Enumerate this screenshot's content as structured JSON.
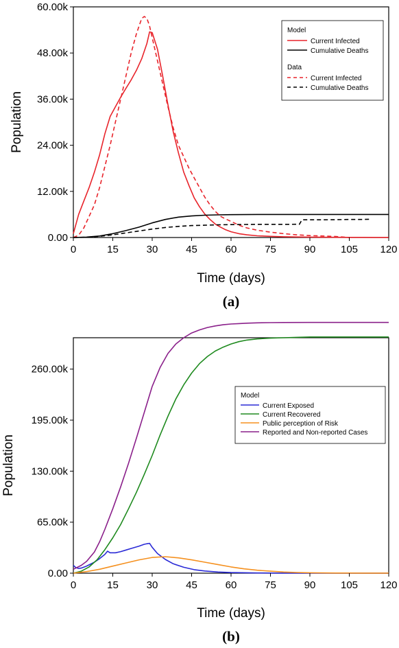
{
  "chart_data": [
    {
      "type": "line",
      "panel_label": "(a)",
      "xlabel": "Time (days)",
      "ylabel": "Population",
      "xlim": [
        0,
        120
      ],
      "ylim": [
        0,
        60000
      ],
      "xticks": [
        "0",
        "15",
        "30",
        "45",
        "60",
        "75",
        "90",
        "105",
        "120"
      ],
      "yticks": [
        "0.00",
        "12.00k",
        "24.00k",
        "36.00k",
        "48.00k",
        "60.00k"
      ],
      "legend_position": "top-right",
      "legend": [
        {
          "heading": "Model",
          "entries": [
            "Current Infected",
            "Cumulative Deaths"
          ]
        },
        {
          "heading": "Data",
          "entries": [
            "Current Imfected",
            "Cumulative Deaths"
          ]
        }
      ],
      "series": [
        {
          "name": "Current Infected",
          "group": "Model",
          "color": "#e8232a",
          "dash": "solid",
          "x": [
            0,
            2,
            4,
            6,
            8,
            10,
            12,
            14,
            16,
            18,
            20,
            22,
            24,
            26,
            28,
            29,
            30,
            32,
            34,
            36,
            38,
            40,
            42,
            44,
            46,
            48,
            50,
            52,
            54,
            56,
            58,
            60,
            63,
            66,
            70,
            75,
            80,
            85,
            90,
            95,
            100,
            105,
            110,
            115,
            120
          ],
          "y": [
            1000,
            6000,
            9500,
            13000,
            17000,
            21500,
            27000,
            31500,
            34000,
            36500,
            38800,
            41000,
            43500,
            46500,
            50500,
            53500,
            53300,
            49000,
            42000,
            34500,
            27500,
            22000,
            17000,
            13500,
            10300,
            8000,
            6100,
            4700,
            3500,
            2700,
            2000,
            1500,
            1000,
            700,
            450,
            300,
            200,
            150,
            100,
            80,
            60,
            40,
            30,
            20,
            15
          ]
        },
        {
          "name": "Cumulative Deaths",
          "group": "Model",
          "color": "#000000",
          "dash": "solid",
          "x": [
            0,
            5,
            10,
            15,
            20,
            25,
            30,
            35,
            40,
            45,
            50,
            55,
            60,
            70,
            80,
            90,
            100,
            110,
            120
          ],
          "y": [
            0,
            100,
            400,
            1000,
            1800,
            2700,
            3800,
            4700,
            5300,
            5600,
            5800,
            5900,
            5950,
            6000,
            6000,
            6000,
            6000,
            6000,
            6000
          ]
        },
        {
          "name": "Current Imfected",
          "group": "Data",
          "color": "#e8232a",
          "dash": "dashed",
          "x": [
            0,
            2,
            4,
            6,
            8,
            10,
            12,
            14,
            16,
            18,
            20,
            22,
            24,
            26,
            27,
            28,
            29,
            30,
            32,
            34,
            36,
            38,
            40,
            42,
            44,
            46,
            48,
            50,
            52,
            54,
            56,
            58,
            60,
            63,
            66,
            70,
            75,
            80,
            85,
            90,
            95,
            100,
            105
          ],
          "y": [
            0,
            600,
            2500,
            5500,
            8500,
            13000,
            18500,
            24000,
            30000,
            36000,
            42000,
            48000,
            53000,
            57000,
            57500,
            57000,
            55000,
            52000,
            46000,
            40000,
            34000,
            28500,
            24000,
            21000,
            18000,
            15500,
            13000,
            10500,
            8500,
            6800,
            5500,
            4800,
            4200,
            3200,
            2500,
            1900,
            1400,
            1000,
            700,
            500,
            400,
            250,
            0
          ]
        },
        {
          "name": "Cumulative Deaths",
          "group": "Data",
          "color": "#000000",
          "dash": "dashed",
          "x": [
            0,
            5,
            10,
            15,
            20,
            25,
            30,
            35,
            40,
            45,
            50,
            55,
            60,
            65,
            70,
            75,
            80,
            86,
            87,
            90,
            95,
            100,
            105,
            110,
            113
          ],
          "y": [
            0,
            80,
            300,
            700,
            1200,
            1700,
            2200,
            2600,
            2900,
            3100,
            3200,
            3300,
            3350,
            3400,
            3420,
            3420,
            3420,
            3450,
            4600,
            4600,
            4600,
            4650,
            4700,
            4700,
            4750
          ]
        }
      ]
    },
    {
      "type": "line",
      "panel_label": "(b)",
      "xlabel": "Time (days)",
      "ylabel": "Population",
      "xlim": [
        0,
        120
      ],
      "ylim": [
        0,
        300000
      ],
      "xticks": [
        "0",
        "15",
        "30",
        "45",
        "60",
        "75",
        "90",
        "105",
        "120"
      ],
      "yticks": [
        "0.00",
        "65.00k",
        "130.00k",
        "195.00k",
        "260.00k"
      ],
      "legend_position": "right",
      "legend": [
        {
          "heading": "Model",
          "entries": [
            "Current Exposed",
            "Current Recovered",
            "Public perception of Risk",
            "Reported and Non-reported Cases"
          ]
        }
      ],
      "series": [
        {
          "name": "Current Exposed",
          "color": "#2a2ad6",
          "dash": "solid",
          "x": [
            0,
            1,
            2,
            3,
            5,
            8,
            10,
            12,
            13,
            14,
            16,
            18,
            20,
            22,
            25,
            27,
            28,
            29,
            30,
            32,
            35,
            38,
            42,
            46,
            50,
            55,
            60,
            70,
            80,
            90,
            100,
            110,
            120
          ],
          "y": [
            10000,
            7000,
            6000,
            6500,
            9000,
            14000,
            18500,
            24000,
            28000,
            26000,
            26000,
            27500,
            29500,
            31500,
            34500,
            36800,
            37500,
            38000,
            33000,
            25000,
            17500,
            12000,
            7500,
            4500,
            2800,
            1500,
            800,
            300,
            100,
            50,
            20,
            10,
            5
          ]
        },
        {
          "name": "Current Recovered",
          "color": "#1e8a1e",
          "dash": "solid",
          "x": [
            0,
            3,
            6,
            9,
            12,
            15,
            18,
            21,
            24,
            27,
            30,
            33,
            36,
            39,
            42,
            45,
            48,
            51,
            54,
            57,
            60,
            63,
            66,
            70,
            75,
            80,
            85,
            90,
            100,
            110,
            120
          ],
          "y": [
            0,
            2500,
            8000,
            17000,
            30000,
            45000,
            62000,
            82000,
            103000,
            126000,
            150000,
            176000,
            200000,
            222000,
            240000,
            255000,
            267000,
            276000,
            283000,
            288000,
            292000,
            295000,
            297000,
            298500,
            299500,
            300000,
            300500,
            301000,
            301000,
            301000,
            301000
          ]
        },
        {
          "name": "Public perception of Risk",
          "color": "#f5901e",
          "dash": "solid",
          "x": [
            0,
            5,
            10,
            15,
            20,
            25,
            30,
            35,
            40,
            45,
            50,
            55,
            60,
            65,
            70,
            75,
            80,
            85,
            90,
            100,
            110,
            120
          ],
          "y": [
            0,
            2000,
            5000,
            9000,
            13000,
            17000,
            20000,
            21000,
            19500,
            17000,
            14000,
            11000,
            8000,
            5500,
            3800,
            2500,
            1500,
            900,
            500,
            200,
            100,
            50
          ]
        },
        {
          "name": "Reported and Non-reported Cases",
          "color": "#8a1f8a",
          "dash": "solid",
          "x": [
            0,
            3,
            5,
            8,
            10,
            12,
            15,
            18,
            21,
            24,
            27,
            30,
            33,
            36,
            39,
            42,
            45,
            48,
            51,
            54,
            57,
            60,
            63,
            66,
            70,
            75,
            80,
            90,
            100,
            110,
            120
          ],
          "y": [
            5000,
            10000,
            15000,
            27000,
            40000,
            56000,
            82000,
            110000,
            140000,
            172000,
            205000,
            238000,
            262000,
            280000,
            292000,
            300000,
            306000,
            310000,
            313000,
            315000,
            316500,
            317500,
            318000,
            318500,
            319000,
            319200,
            319400,
            319500,
            319500,
            319500,
            319500
          ]
        }
      ]
    }
  ]
}
